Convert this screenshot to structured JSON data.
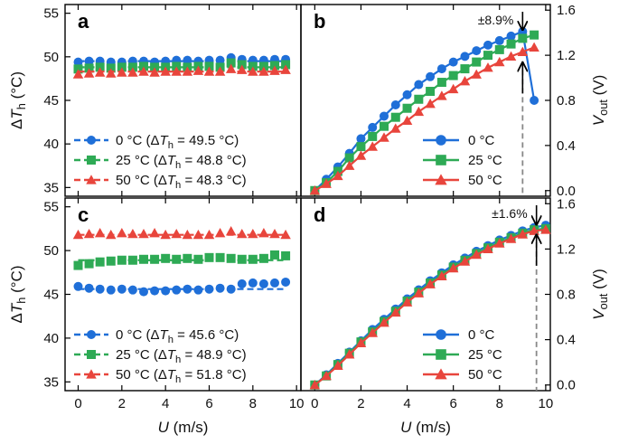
{
  "colors": {
    "c0": "#1f6fd8",
    "c25": "#2eaa55",
    "c50": "#e8453c",
    "ref": "#888888"
  },
  "axis_labels": {
    "x": "U (m/s)",
    "y_left_base": "ΔT",
    "y_left_sub": "h",
    "y_left_unit": " (°C)",
    "y_right_base": "V",
    "y_right_sub": "out",
    "y_right_unit": " (V)"
  },
  "chart_data": [
    {
      "panel": "a",
      "type": "scatter",
      "xlim": [
        -0.6,
        10.2
      ],
      "ylim": [
        34,
        56
      ],
      "x_ticks": [
        "0",
        "2",
        "4",
        "6",
        "8",
        "10"
      ],
      "y_ticks": [
        "35",
        "40",
        "45",
        "50",
        "55"
      ],
      "xlabel": "",
      "ylabel": "ΔTh (°C)",
      "legend_position": "bottom-left",
      "series": [
        {
          "name": "0 °C (ΔTh = 49.5 °C)",
          "label_pre": "0 °C (Δ",
          "label_T": "T",
          "label_sub": "h",
          "label_post": " = 49.5 °C)",
          "color_key": "c0",
          "marker": "circle",
          "fit": 49.5,
          "x": [
            0,
            0.5,
            1,
            1.5,
            2,
            2.5,
            3,
            3.5,
            4,
            4.5,
            5,
            5.5,
            6,
            6.5,
            7,
            7.5,
            8,
            8.5,
            9,
            9.5
          ],
          "y": [
            49.4,
            49.5,
            49.5,
            49.4,
            49.4,
            49.5,
            49.5,
            49.4,
            49.5,
            49.6,
            49.6,
            49.5,
            49.6,
            49.6,
            49.9,
            49.7,
            49.6,
            49.6,
            49.7,
            49.7
          ]
        },
        {
          "name": "25 °C (ΔTh = 48.8 °C)",
          "label_pre": "25 °C (Δ",
          "label_T": "T",
          "label_sub": "h",
          "label_post": " = 48.8 °C)",
          "color_key": "c25",
          "marker": "square",
          "fit": 48.8,
          "x": [
            0,
            0.5,
            1,
            1.5,
            2,
            2.5,
            3,
            3.5,
            4,
            4.5,
            5,
            5.5,
            6,
            6.5,
            7,
            7.5,
            8,
            8.5,
            9,
            9.5
          ],
          "y": [
            48.6,
            48.7,
            48.8,
            48.7,
            48.8,
            48.8,
            48.9,
            48.8,
            48.8,
            48.9,
            48.8,
            48.9,
            48.9,
            48.8,
            49.3,
            49.1,
            48.9,
            48.9,
            49.0,
            49.1
          ]
        },
        {
          "name": "50 °C (ΔTh = 48.3 °C)",
          "label_pre": "50 °C (Δ",
          "label_T": "T",
          "label_sub": "h",
          "label_post": " = 48.3 °C)",
          "color_key": "c50",
          "marker": "triangle",
          "fit": 48.3,
          "x": [
            0,
            0.5,
            1,
            1.5,
            2,
            2.5,
            3,
            3.5,
            4,
            4.5,
            5,
            5.5,
            6,
            6.5,
            7,
            7.5,
            8,
            8.5,
            9,
            9.5
          ],
          "y": [
            48.0,
            48.1,
            48.2,
            48.1,
            48.2,
            48.2,
            48.3,
            48.2,
            48.3,
            48.3,
            48.3,
            48.4,
            48.3,
            48.3,
            48.6,
            48.5,
            48.3,
            48.3,
            48.4,
            48.5
          ]
        }
      ]
    },
    {
      "panel": "b",
      "type": "line",
      "xlim": [
        -0.6,
        10.2
      ],
      "ylim": [
        -0.05,
        1.65
      ],
      "x_ticks": [
        "0",
        "2",
        "4",
        "6",
        "8",
        "10"
      ],
      "y_ticks": [
        "0.0",
        "0.4",
        "0.8",
        "1.2",
        "1.6"
      ],
      "xlabel": "",
      "ylabel": "Vout (V)",
      "legend_position": "bottom-right",
      "annotation": {
        "text": "±8.9%",
        "x": 9.0,
        "y_top": 1.41,
        "y_bottom": 1.15
      },
      "series": [
        {
          "name": "0 °C",
          "color_key": "c0",
          "marker": "circle",
          "x": [
            0,
            0.5,
            1,
            1.5,
            2,
            2.5,
            3,
            3.5,
            4,
            4.5,
            5,
            5.5,
            6,
            6.5,
            7,
            7.5,
            8,
            8.5,
            9,
            9.5
          ],
          "y": [
            0.0,
            0.1,
            0.21,
            0.33,
            0.46,
            0.56,
            0.66,
            0.76,
            0.85,
            0.94,
            1.01,
            1.08,
            1.14,
            1.19,
            1.24,
            1.29,
            1.33,
            1.37,
            1.41,
            0.8
          ]
        },
        {
          "name": "25 °C",
          "color_key": "c25",
          "marker": "square",
          "x": [
            0,
            0.5,
            1,
            1.5,
            2,
            2.5,
            3,
            3.5,
            4,
            4.5,
            5,
            5.5,
            6,
            6.5,
            7,
            7.5,
            8,
            8.5,
            9,
            9.5
          ],
          "y": [
            0.0,
            0.07,
            0.17,
            0.29,
            0.39,
            0.48,
            0.57,
            0.65,
            0.73,
            0.81,
            0.88,
            0.96,
            1.02,
            1.08,
            1.14,
            1.2,
            1.25,
            1.3,
            1.35,
            1.38
          ]
        },
        {
          "name": "50 °C",
          "color_key": "c50",
          "marker": "triangle",
          "x": [
            0,
            0.5,
            1,
            1.5,
            2,
            2.5,
            3,
            3.5,
            4,
            4.5,
            5,
            5.5,
            6,
            6.5,
            7,
            7.5,
            8,
            8.5,
            9,
            9.5
          ],
          "y": [
            0.0,
            0.06,
            0.13,
            0.22,
            0.31,
            0.39,
            0.47,
            0.55,
            0.62,
            0.7,
            0.77,
            0.84,
            0.9,
            0.97,
            1.03,
            1.09,
            1.14,
            1.19,
            1.23,
            1.27
          ]
        }
      ]
    },
    {
      "panel": "c",
      "type": "scatter",
      "xlim": [
        -0.6,
        10.2
      ],
      "ylim": [
        34,
        56
      ],
      "x_ticks": [
        "0",
        "2",
        "4",
        "6",
        "8",
        "10"
      ],
      "y_ticks": [
        "35",
        "40",
        "45",
        "50",
        "55"
      ],
      "xlabel": "U (m/s)",
      "ylabel": "ΔTh (°C)",
      "legend_position": "bottom-left",
      "series": [
        {
          "name": "0 °C (ΔTh = 45.6 °C)",
          "label_pre": "0 °C (Δ",
          "label_T": "T",
          "label_sub": "h",
          "label_post": " = 45.6 °C)",
          "color_key": "c0",
          "marker": "circle",
          "fit": 45.6,
          "x": [
            0,
            0.5,
            1,
            1.5,
            2,
            2.5,
            3,
            3.5,
            4,
            4.5,
            5,
            5.5,
            6,
            6.5,
            7,
            7.5,
            8,
            8.5,
            9,
            9.5
          ],
          "y": [
            45.9,
            45.7,
            45.6,
            45.5,
            45.6,
            45.5,
            45.3,
            45.4,
            45.4,
            45.5,
            45.6,
            45.5,
            45.6,
            45.7,
            45.6,
            46.2,
            46.3,
            46.2,
            46.3,
            46.4
          ]
        },
        {
          "name": "25 °C (ΔTh = 48.9 °C)",
          "label_pre": "25 °C (Δ",
          "label_T": "T",
          "label_sub": "h",
          "label_post": " = 48.9 °C)",
          "color_key": "c25",
          "marker": "square",
          "fit": 48.9,
          "x": [
            0,
            0.5,
            1,
            1.5,
            2,
            2.5,
            3,
            3.5,
            4,
            4.5,
            5,
            5.5,
            6,
            6.5,
            7,
            7.5,
            8,
            8.5,
            9,
            9.5
          ],
          "y": [
            48.3,
            48.5,
            48.7,
            48.8,
            48.9,
            48.9,
            49.0,
            49.0,
            49.1,
            49.0,
            49.1,
            49.0,
            49.2,
            49.2,
            49.1,
            49.0,
            49.0,
            49.1,
            49.5,
            49.4
          ]
        },
        {
          "name": "50 °C (ΔTh = 51.8 °C)",
          "label_pre": "50 °C (Δ",
          "label_T": "T",
          "label_sub": "h",
          "label_post": " = 51.8 °C)",
          "color_key": "c50",
          "marker": "triangle",
          "fit": 51.8,
          "x": [
            0,
            0.5,
            1,
            1.5,
            2,
            2.5,
            3,
            3.5,
            4,
            4.5,
            5,
            5.5,
            6,
            6.5,
            7,
            7.5,
            8,
            8.5,
            9,
            9.5
          ],
          "y": [
            51.8,
            51.9,
            52.0,
            51.8,
            52.0,
            51.9,
            51.9,
            52.0,
            51.8,
            51.9,
            51.8,
            51.8,
            51.8,
            52.0,
            52.2,
            51.9,
            51.9,
            52.0,
            51.9,
            51.8
          ]
        }
      ]
    },
    {
      "panel": "d",
      "type": "line",
      "xlim": [
        -0.6,
        10.2
      ],
      "ylim": [
        -0.05,
        1.65
      ],
      "x_ticks": [
        "0",
        "2",
        "4",
        "6",
        "8",
        "10"
      ],
      "y_ticks": [
        "0.0",
        "0.4",
        "0.8",
        "1.2",
        "1.6"
      ],
      "xlabel": "U (m/s)",
      "ylabel": "Vout (V)",
      "legend_position": "bottom-right",
      "annotation": {
        "text": "±1.6%",
        "x": 9.6,
        "y_top": 1.4,
        "y_bottom": 1.34
      },
      "series": [
        {
          "name": "0 °C",
          "color_key": "c0",
          "marker": "circle",
          "x": [
            0,
            0.5,
            1,
            1.5,
            2,
            2.5,
            3,
            3.5,
            4,
            4.5,
            5,
            5.5,
            6,
            6.5,
            7,
            7.5,
            8,
            8.5,
            9,
            9.5,
            10
          ],
          "y": [
            0.0,
            0.09,
            0.19,
            0.29,
            0.39,
            0.49,
            0.58,
            0.67,
            0.76,
            0.84,
            0.92,
            0.99,
            1.06,
            1.12,
            1.18,
            1.23,
            1.28,
            1.32,
            1.36,
            1.39,
            1.41
          ]
        },
        {
          "name": "25 °C",
          "color_key": "c25",
          "marker": "square",
          "x": [
            0,
            0.5,
            1,
            1.5,
            2,
            2.5,
            3,
            3.5,
            4,
            4.5,
            5,
            5.5,
            6,
            6.5,
            7,
            7.5,
            8,
            8.5,
            9,
            9.5,
            10
          ],
          "y": [
            0.0,
            0.08,
            0.18,
            0.28,
            0.38,
            0.47,
            0.56,
            0.65,
            0.74,
            0.82,
            0.9,
            0.97,
            1.04,
            1.1,
            1.16,
            1.21,
            1.26,
            1.3,
            1.34,
            1.37,
            1.38
          ]
        },
        {
          "name": "50 °C",
          "color_key": "c50",
          "marker": "triangle",
          "x": [
            0,
            0.5,
            1,
            1.5,
            2,
            2.5,
            3,
            3.5,
            4,
            4.5,
            5,
            5.5,
            6,
            6.5,
            7,
            7.5,
            8,
            8.5,
            9,
            9.5,
            10
          ],
          "y": [
            0.0,
            0.08,
            0.17,
            0.27,
            0.37,
            0.46,
            0.55,
            0.64,
            0.73,
            0.81,
            0.89,
            0.96,
            1.03,
            1.09,
            1.15,
            1.2,
            1.25,
            1.29,
            1.33,
            1.36,
            1.37
          ]
        }
      ]
    }
  ]
}
